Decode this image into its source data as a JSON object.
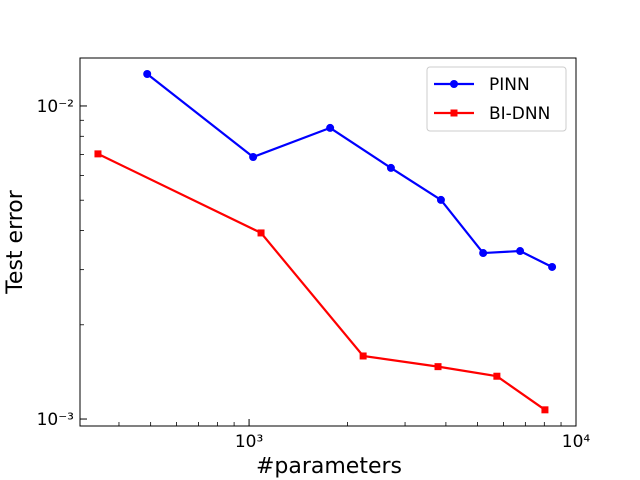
{
  "chart_data": {
    "type": "line",
    "x_label": "#parameters",
    "y_label": "Test error",
    "xscale": "log",
    "yscale": "log",
    "xlim": [
      304,
      10000
    ],
    "ylim": [
      0.00095,
      0.01423
    ],
    "xticks": [
      {
        "value": 1000,
        "label": "10³"
      },
      {
        "value": 10000,
        "label": "10⁴"
      }
    ],
    "yticks": [
      {
        "value": 0.001,
        "label": "10⁻³"
      },
      {
        "value": 0.01,
        "label": "10⁻²"
      }
    ],
    "xminorticks": [
      400,
      500,
      600,
      700,
      800,
      900,
      2000,
      3000,
      4000,
      5000,
      6000,
      7000,
      8000,
      9000
    ],
    "yminorticks": [
      0.002,
      0.003,
      0.004,
      0.005,
      0.006,
      0.007,
      0.008,
      0.009
    ],
    "legend": "upper right",
    "series": [
      {
        "name": "PINN",
        "color": "#0000ff",
        "marker": "circle",
        "x": [
          488,
          1029,
          1770,
          2716,
          3863,
          5200,
          6745,
          8450
        ],
        "values": [
          0.01265,
          0.00687,
          0.00851,
          0.00634,
          0.00501,
          0.00339,
          0.00344,
          0.00306
        ]
      },
      {
        "name": "BI-DNN",
        "color": "#ff0000",
        "marker": "square",
        "x": [
          345,
          1088,
          2233,
          3784,
          5728,
          8035
        ],
        "values": [
          0.00703,
          0.00393,
          0.00159,
          0.00147,
          0.00137,
          0.00107
        ]
      }
    ]
  }
}
